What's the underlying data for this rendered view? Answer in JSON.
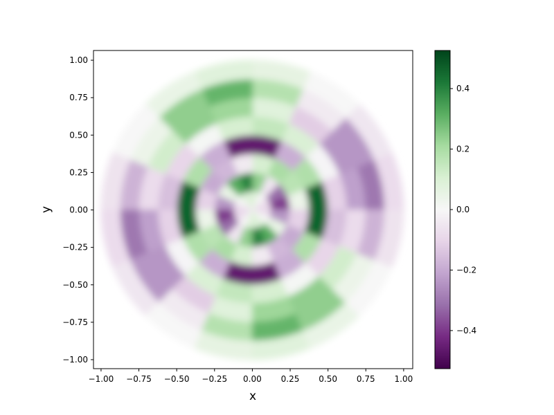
{
  "chart_data": {
    "type": "polar-field",
    "xlabel": "x",
    "ylabel": "y",
    "xlim": [
      -1.05,
      1.06
    ],
    "ylim": [
      -1.06,
      1.065
    ],
    "xticks": [
      {
        "value": -1,
        "label": "−1.00"
      },
      {
        "value": -0.75,
        "label": "−0.75"
      },
      {
        "value": -0.5,
        "label": "−0.50"
      },
      {
        "value": -0.25,
        "label": "−0.25"
      },
      {
        "value": 0,
        "label": "0.00"
      },
      {
        "value": 0.25,
        "label": "0.25"
      },
      {
        "value": 0.5,
        "label": "0.50"
      },
      {
        "value": 0.75,
        "label": "0.75"
      },
      {
        "value": 1,
        "label": "1.00"
      }
    ],
    "yticks": [
      {
        "value": -1,
        "label": "−1.00"
      },
      {
        "value": -0.75,
        "label": "−0.75"
      },
      {
        "value": -0.5,
        "label": "−0.50"
      },
      {
        "value": -0.25,
        "label": "−0.25"
      },
      {
        "value": 0,
        "label": "0.00"
      },
      {
        "value": 0.25,
        "label": "0.25"
      },
      {
        "value": 0.5,
        "label": "0.50"
      },
      {
        "value": 0.75,
        "label": "0.75"
      },
      {
        "value": 1,
        "label": "1.00"
      }
    ],
    "colormap": [
      "#40004b",
      "#762a83",
      "#9970ab",
      "#c2a5cf",
      "#e7d4e8",
      "#f7f7f7",
      "#d9f0d3",
      "#a6dba0",
      "#5aae61",
      "#1b7837",
      "#00441b"
    ],
    "clim": [
      -0.526,
      0.526
    ],
    "cticks": [
      {
        "value": -0.4,
        "label": "−0.4"
      },
      {
        "value": -0.2,
        "label": "−0.2"
      },
      {
        "value": 0,
        "label": "0.0"
      },
      0.2,
      0.4
    ],
    "field": {
      "radii": [
        0,
        0.125,
        0.25,
        0.375,
        0.5,
        0.625,
        0.75,
        0.875,
        1
      ],
      "angles": [
        0,
        22.5,
        45,
        67.5,
        90,
        112.5,
        135,
        157.5,
        180,
        202.5,
        225,
        247.5,
        270,
        292.5,
        315,
        337.5,
        360
      ],
      "values": [
        [
          -0.1,
          -0.07,
          0.0,
          0.07,
          0.1,
          0.07,
          0.0,
          -0.07,
          -0.1,
          -0.07,
          0.0,
          0.07,
          0.1,
          0.07,
          0.0,
          -0.07
        ],
        [
          -0.4,
          -0.32,
          -0.05,
          0.24,
          0.4,
          0.32,
          0.05,
          -0.24,
          -0.4,
          -0.32,
          -0.05,
          0.24,
          0.4,
          0.32,
          0.05,
          -0.24
        ],
        [
          0.04,
          0.17,
          0.2,
          0.11,
          -0.04,
          -0.17,
          -0.2,
          -0.11,
          0.04,
          0.17,
          0.2,
          0.11,
          -0.04,
          -0.17,
          -0.2,
          -0.11
        ],
        [
          0.46,
          0.19,
          -0.19,
          -0.46,
          -0.46,
          -0.19,
          0.19,
          0.46,
          0.46,
          0.19,
          -0.19,
          -0.46,
          -0.46,
          -0.19,
          0.19,
          0.46
        ],
        [
          -0.11,
          -0.01,
          0.1,
          0.15,
          0.11,
          0.01,
          -0.1,
          -0.15,
          -0.11,
          -0.01,
          0.1,
          0.15,
          0.11,
          0.01,
          -0.1,
          -0.15
        ],
        [
          -0.22,
          -0.24,
          -0.12,
          0.08,
          0.22,
          0.24,
          0.12,
          -0.08,
          -0.22,
          -0.24,
          -0.12,
          0.08,
          0.22,
          0.24,
          0.12,
          -0.08
        ],
        [
          -0.3,
          -0.24,
          -0.04,
          0.18,
          0.3,
          0.24,
          0.04,
          -0.18,
          -0.3,
          -0.24,
          -0.04,
          0.18,
          0.3,
          0.24,
          0.04,
          -0.18
        ],
        [
          -0.08,
          -0.05,
          0.0,
          0.06,
          0.08,
          0.05,
          0.0,
          -0.06,
          -0.08,
          -0.05,
          0.0,
          0.06,
          0.08,
          0.05,
          0.0,
          -0.06
        ]
      ]
    }
  }
}
